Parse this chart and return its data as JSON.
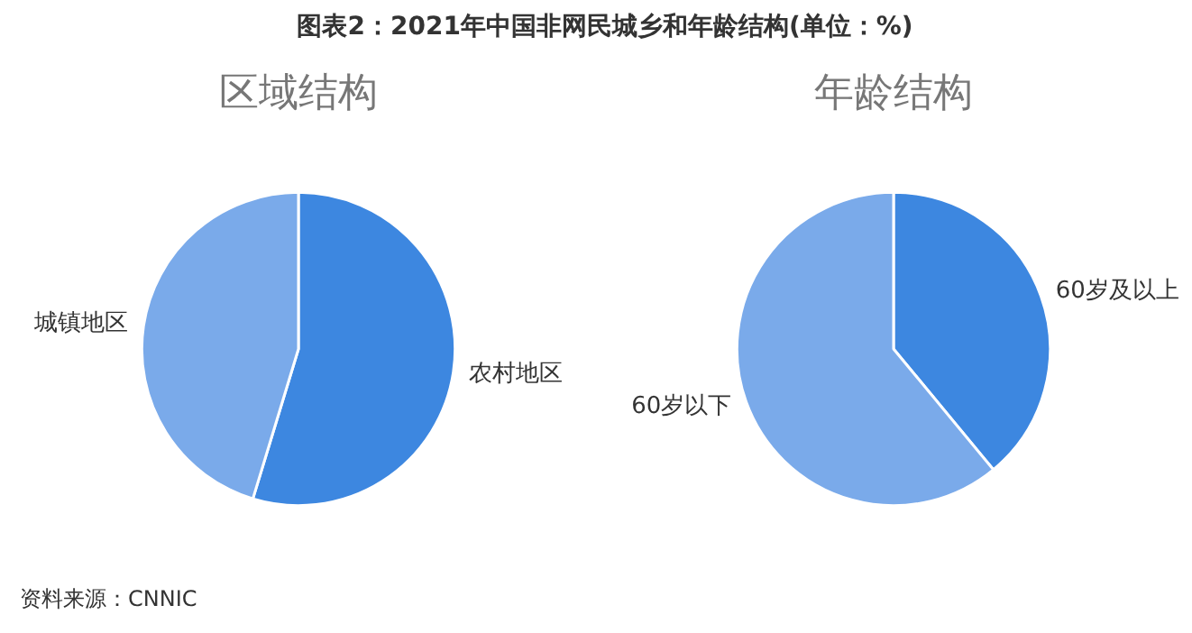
{
  "chart_data": [
    {
      "type": "pie",
      "title": "区域结构",
      "categories": [
        "农村地区",
        "城镇地区"
      ],
      "values": [
        54.7,
        45.3
      ],
      "colors": [
        "#3d87e0",
        "#7aaaea"
      ],
      "annotations": [
        "图表2：2021年中国非网民城乡和年龄结构(单位：%)"
      ]
    },
    {
      "type": "pie",
      "title": "年龄结构",
      "categories": [
        "60岁及以上",
        "60岁以下"
      ],
      "values": [
        39,
        61
      ],
      "colors": [
        "#3d87e0",
        "#7aaaea"
      ],
      "annotations": [
        "资料来源：CNNIC"
      ]
    }
  ]
}
